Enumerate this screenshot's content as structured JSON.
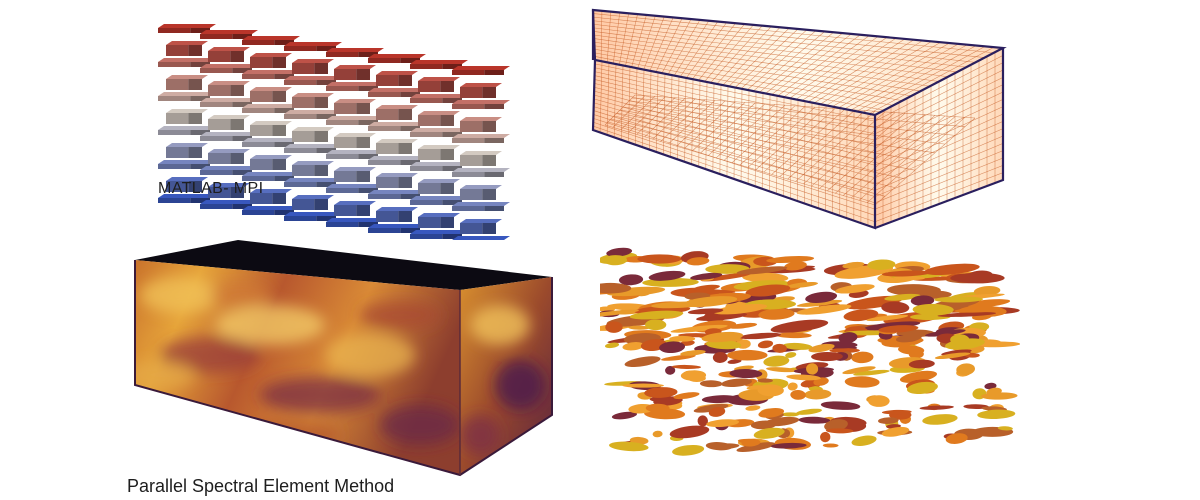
{
  "captions": {
    "top_left": "MATLAB- MPI",
    "bottom_left": "Parallel Spectral Element Method"
  },
  "colors": {
    "background": "#ffffff",
    "stack_top": "#b03228",
    "stack_mid": "#c9c0b8",
    "stack_bottom": "#3553b5",
    "mesh_edge": "#2a1f5e",
    "mesh_fill": "#ffd28a",
    "field_dark": "#0c0a12",
    "field_warm": "#e6a43a",
    "field_deep": "#4a1d4e"
  }
}
